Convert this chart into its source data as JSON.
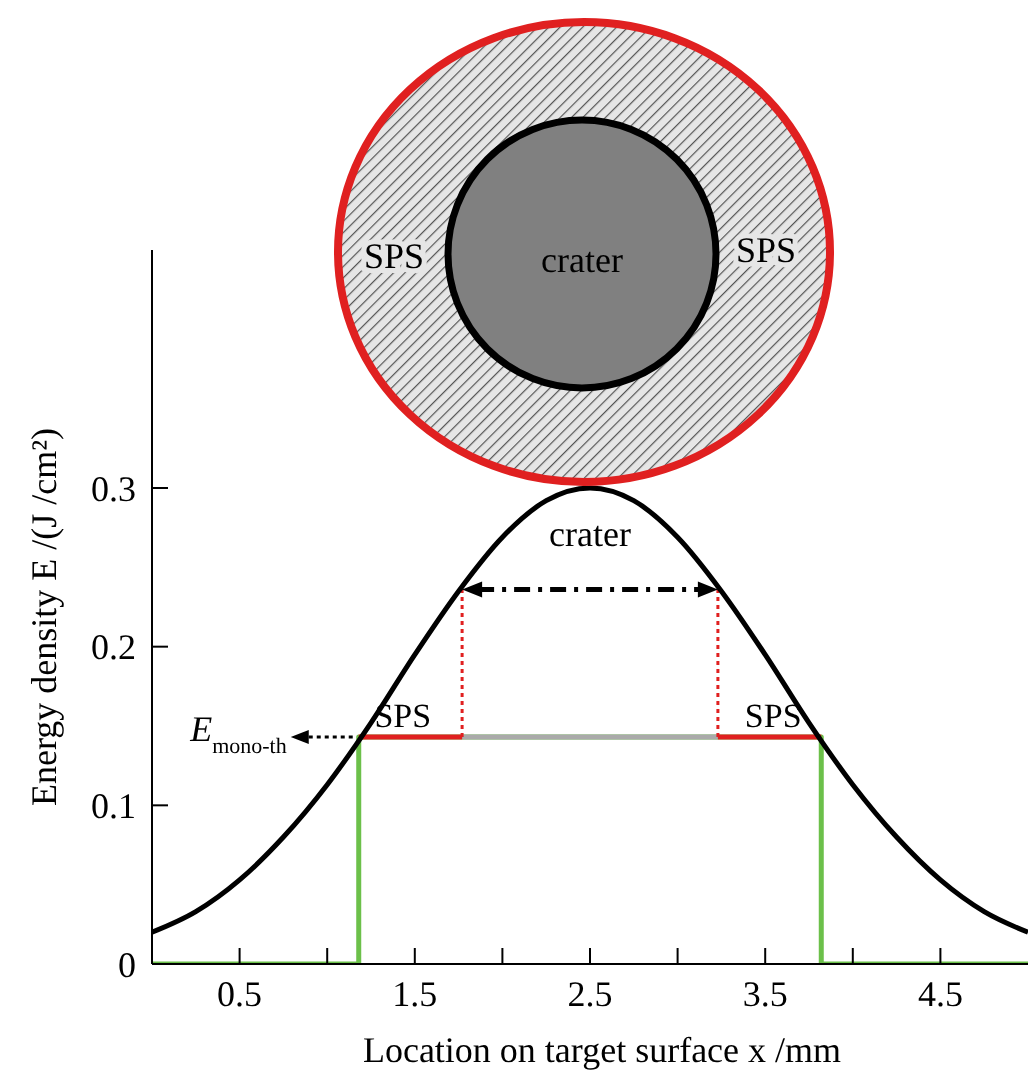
{
  "chart_data": {
    "type": "line",
    "xlabel": "Location on target surface x /mm",
    "ylabel": "Energy density E /(J /cm²)",
    "xlim": [
      0,
      5
    ],
    "ylim": [
      0,
      0.45
    ],
    "xticks": [
      0.5,
      {
        "value": 1,
        "label": null
      },
      1.5,
      {
        "value": 2,
        "label": null
      },
      2.5,
      {
        "value": 3,
        "label": null
      },
      3.5,
      {
        "value": 4,
        "label": null
      },
      4.5
    ],
    "yticks": [
      0,
      0.1,
      0.2,
      0.3
    ],
    "series": [
      {
        "color": "#6cc04a",
        "x": [
          0,
          1.18,
          1.18,
          3.82,
          3.82,
          5
        ],
        "values": [
          0,
          0,
          0.143,
          0.143,
          0,
          0
        ]
      },
      {
        "color": "#aaaaaa",
        "x": [
          1.77,
          3.23
        ],
        "values": [
          0.143,
          0.143
        ]
      },
      {
        "color": "#e02020",
        "x": [
          1.18,
          1.77
        ],
        "values": [
          0.143,
          0.143
        ]
      },
      {
        "color": "#e02020",
        "x": [
          3.23,
          3.82
        ],
        "values": [
          0.143,
          0.143
        ]
      },
      {
        "color": "#e02020",
        "line_style": "dotted",
        "x": [
          1.77,
          1.77
        ],
        "values": [
          0.143,
          0.236
        ]
      },
      {
        "color": "#e02020",
        "line_style": "dotted",
        "x": [
          3.23,
          3.23
        ],
        "values": [
          0.143,
          0.236
        ]
      },
      {
        "color": "#000000",
        "x": [
          0,
          0.25,
          0.5,
          0.75,
          1,
          1.25,
          1.5,
          1.75,
          2,
          2.25,
          2.5,
          2.75,
          3,
          3.25,
          3.5,
          3.75,
          4,
          4.25,
          4.5,
          4.75,
          5
        ],
        "values": [
          0.02,
          0.033,
          0.053,
          0.08,
          0.113,
          0.152,
          0.195,
          0.235,
          0.269,
          0.292,
          0.3,
          0.292,
          0.269,
          0.235,
          0.195,
          0.152,
          0.113,
          0.08,
          0.053,
          0.033,
          0.02
        ]
      }
    ],
    "annotations": [
      "crater",
      {
        "text": "SPS",
        "x": 1.5,
        "y": 0.143
      },
      {
        "text": "SPS",
        "x": 3.5,
        "y": 0.143
      },
      {
        "text": "E$_{mono-th}$",
        "x": 1.18,
        "y": 0.143
      },
      "SPS",
      "crater",
      "SPS"
    ]
  }
}
